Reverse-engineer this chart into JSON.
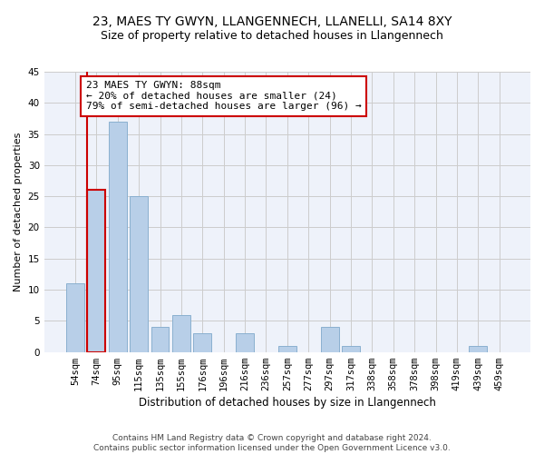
{
  "title": "23, MAES TY GWYN, LLANGENNECH, LLANELLI, SA14 8XY",
  "subtitle": "Size of property relative to detached houses in Llangennech",
  "xlabel": "Distribution of detached houses by size in Llangennech",
  "ylabel": "Number of detached properties",
  "categories": [
    "54sqm",
    "74sqm",
    "95sqm",
    "115sqm",
    "135sqm",
    "155sqm",
    "176sqm",
    "196sqm",
    "216sqm",
    "236sqm",
    "257sqm",
    "277sqm",
    "297sqm",
    "317sqm",
    "338sqm",
    "358sqm",
    "378sqm",
    "398sqm",
    "419sqm",
    "439sqm",
    "459sqm"
  ],
  "values": [
    11,
    26,
    37,
    25,
    4,
    6,
    3,
    0,
    3,
    0,
    1,
    0,
    4,
    1,
    0,
    0,
    0,
    0,
    0,
    1,
    0
  ],
  "bar_color": "#b8cfe8",
  "bar_edge_color": "#8ab0d0",
  "highlight_bar_index": 1,
  "highlight_bar_color": "#b8cfe8",
  "highlight_bar_edge_color": "#cc0000",
  "highlight_line_color": "#cc0000",
  "annotation_text": "23 MAES TY GWYN: 88sqm\n← 20% of detached houses are smaller (24)\n79% of semi-detached houses are larger (96) →",
  "annotation_box_color": "#ffffff",
  "annotation_box_edge_color": "#cc0000",
  "ylim": [
    0,
    45
  ],
  "yticks": [
    0,
    5,
    10,
    15,
    20,
    25,
    30,
    35,
    40,
    45
  ],
  "grid_color": "#cccccc",
  "background_color": "#eef2fa",
  "footer": "Contains HM Land Registry data © Crown copyright and database right 2024.\nContains public sector information licensed under the Open Government Licence v3.0.",
  "title_fontsize": 10,
  "subtitle_fontsize": 9,
  "xlabel_fontsize": 8.5,
  "ylabel_fontsize": 8,
  "tick_fontsize": 7.5,
  "annotation_fontsize": 8,
  "footer_fontsize": 6.5
}
